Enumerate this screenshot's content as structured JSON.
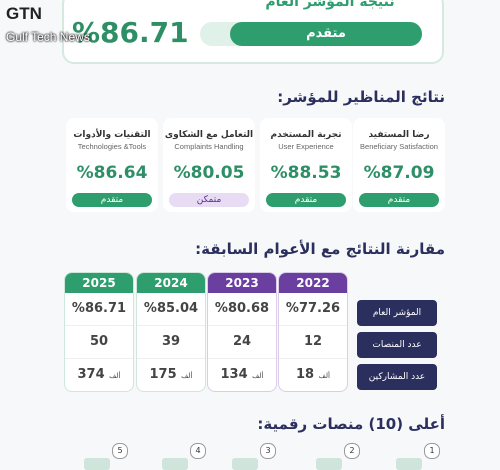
{
  "watermark": {
    "brand": "GTN",
    "name": "Gulf Tech News"
  },
  "overall": {
    "title": "نتيجة المؤشر العام",
    "score": "%86.71",
    "status": "متقدم"
  },
  "perspectives": {
    "title": "نتائج المناظير للمؤشر:",
    "items": [
      {
        "ar": "رضا المستفيد",
        "en": "Beneficiary Satisfaction",
        "score": "%87.09",
        "status": "متقدم"
      },
      {
        "ar": "تجربة المستخدم",
        "en": "User Experience",
        "score": "%88.53",
        "status": "متقدم"
      },
      {
        "ar": "التعامل مع الشكاوى",
        "en": "Complaints Handling",
        "score": "%80.05",
        "status": "متمكن"
      },
      {
        "ar": "التقنيات والأدوات",
        "en": "Technologies &Tools",
        "score": "%86.64",
        "status": "متقدم"
      }
    ]
  },
  "comparison": {
    "title": "مقارنة النتائج مع الأعوام السابقة:",
    "row_labels": [
      "المؤشر العام",
      "عدد المنصات",
      "عدد المشاركين"
    ],
    "participants_unit": "ألف",
    "years": [
      {
        "year": "2022",
        "index": "%77.26",
        "platforms": "12",
        "participants": "18"
      },
      {
        "year": "2023",
        "index": "%80.68",
        "platforms": "24",
        "participants": "134"
      },
      {
        "year": "2024",
        "index": "%85.04",
        "platforms": "39",
        "participants": "175"
      },
      {
        "year": "2025",
        "index": "%86.71",
        "platforms": "50",
        "participants": "374"
      }
    ]
  },
  "top_platforms": {
    "title": "أعلى (10) منصات رقمية:",
    "ranks": [
      "1",
      "2",
      "3",
      "4",
      "5"
    ]
  }
}
